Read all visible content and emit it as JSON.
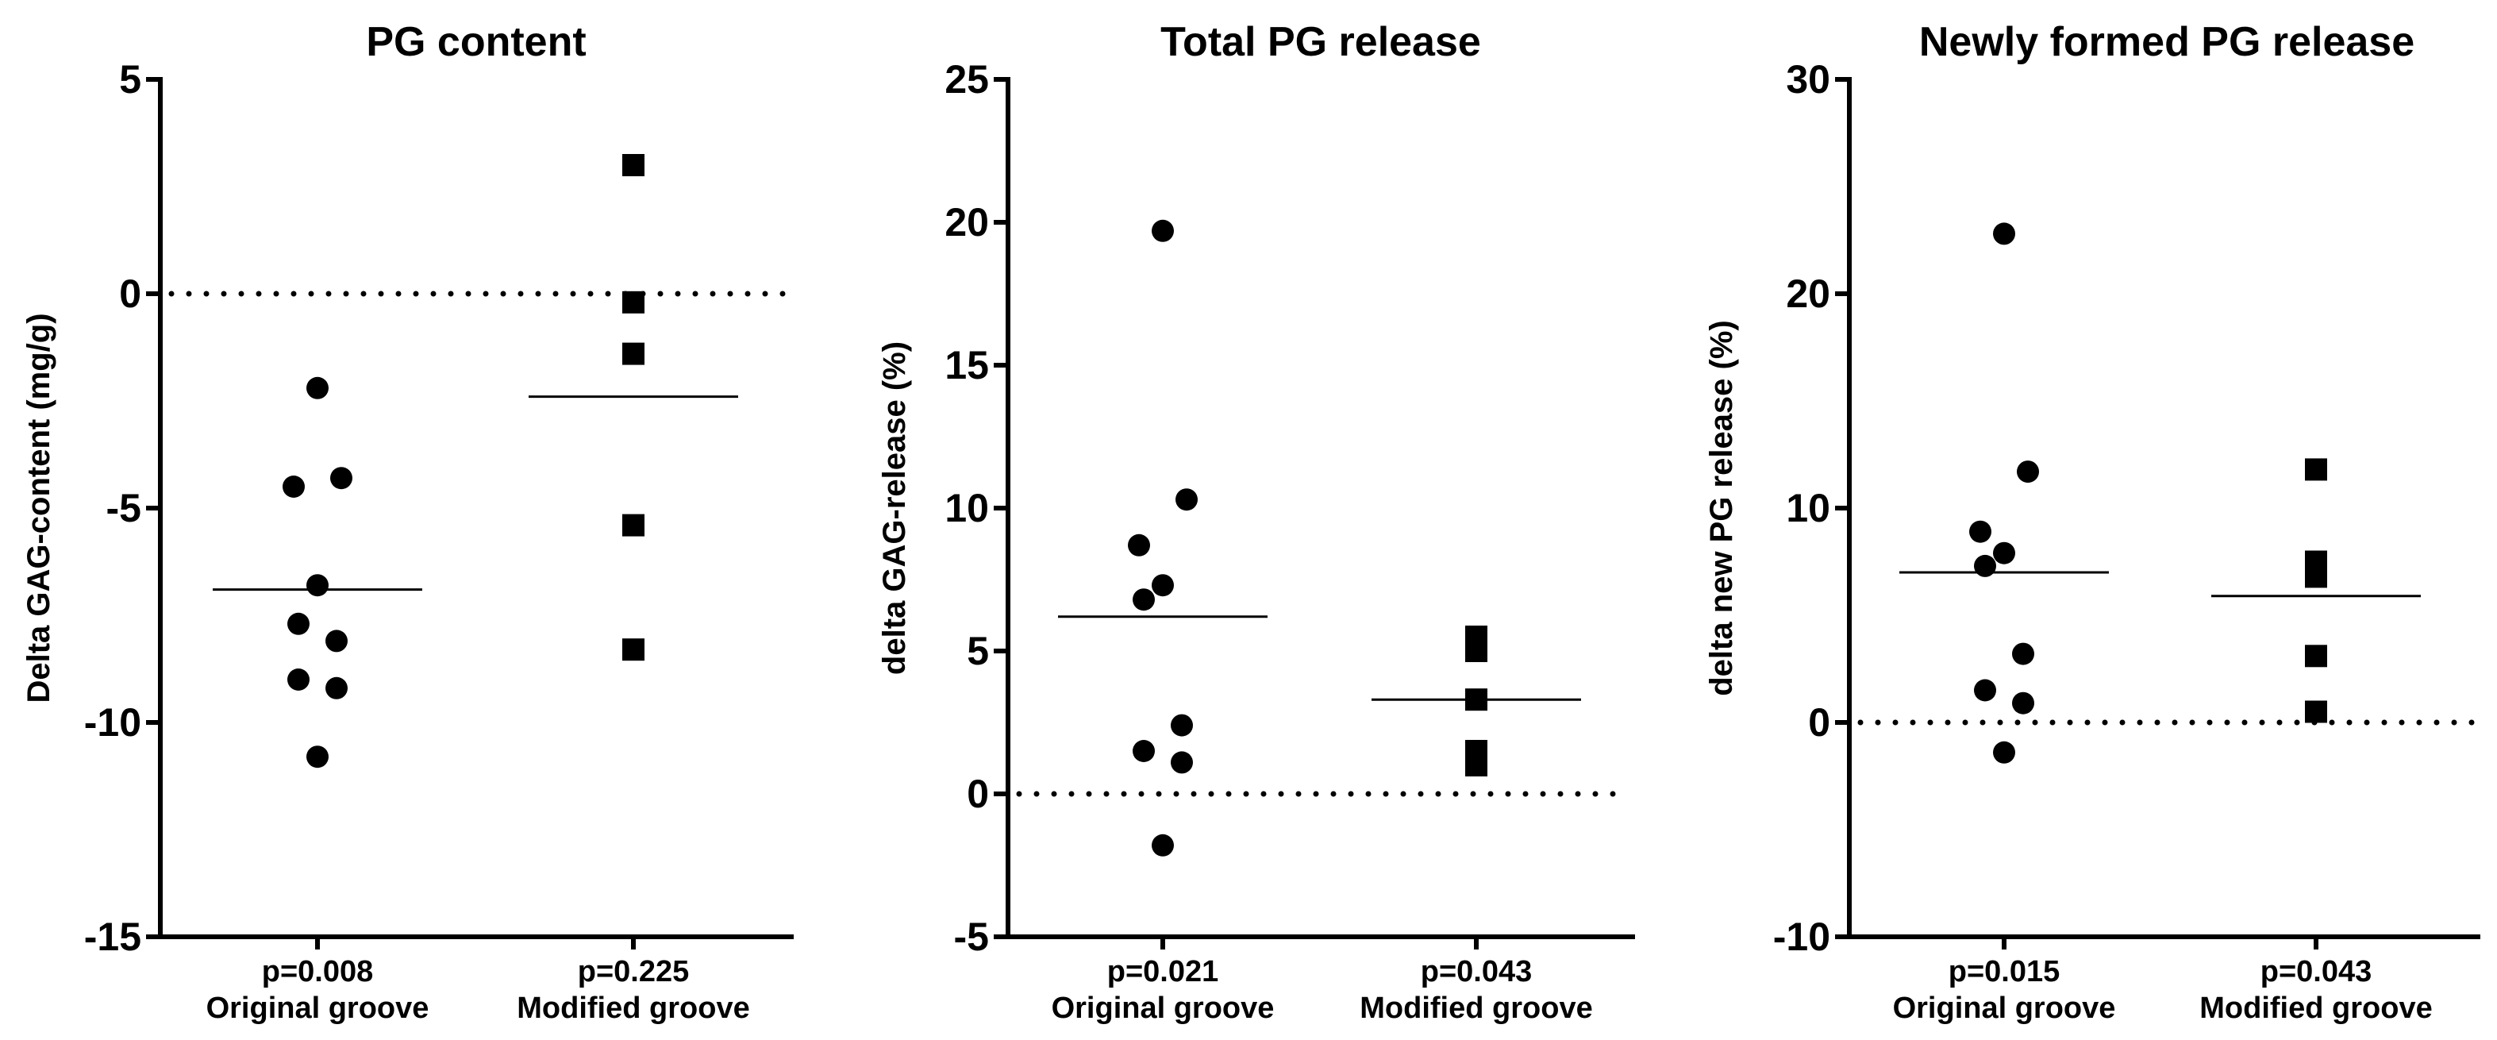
{
  "chart_data": [
    {
      "type": "scatter",
      "title": "PG content",
      "ylabel": "Delta GAG-content (mg/g)",
      "xlabel": "",
      "ylim": [
        -15,
        5
      ],
      "yticks": [
        5,
        0,
        -5,
        -10,
        -15
      ],
      "reference_line": 0,
      "groups": [
        {
          "name": "Original groove",
          "p_value": "p=0.008",
          "marker": "circle",
          "mean": -6.9,
          "values": [
            -2.2,
            -4.3,
            -4.5,
            -6.8,
            -7.7,
            -8.1,
            -9.0,
            -9.2,
            -10.8
          ]
        },
        {
          "name": "Modified groove",
          "p_value": "p=0.225",
          "marker": "square",
          "mean": -2.4,
          "values": [
            3.0,
            -0.2,
            -1.4,
            -5.4,
            -8.3
          ]
        }
      ]
    },
    {
      "type": "scatter",
      "title": "Total PG release",
      "ylabel": "delta GAG-release (%)",
      "xlabel": "",
      "ylim": [
        -5,
        25
      ],
      "yticks": [
        25,
        20,
        15,
        10,
        5,
        0,
        -5
      ],
      "reference_line": 0,
      "groups": [
        {
          "name": "Original groove",
          "p_value": "p=0.021",
          "marker": "circle",
          "mean": 6.2,
          "values": [
            19.7,
            10.3,
            8.7,
            7.3,
            6.8,
            2.4,
            1.5,
            1.1,
            -1.8
          ]
        },
        {
          "name": "Modified groove",
          "p_value": "p=0.043",
          "marker": "square",
          "mean": 3.3,
          "values": [
            5.5,
            5.0,
            3.3,
            1.5,
            1.0
          ]
        }
      ]
    },
    {
      "type": "scatter",
      "title": "Newly formed PG release",
      "ylabel": "delta new PG release  (%)",
      "xlabel": "",
      "ylim": [
        -10,
        30
      ],
      "yticks": [
        30,
        20,
        10,
        0,
        -10
      ],
      "reference_line": 0,
      "groups": [
        {
          "name": "Original groove",
          "p_value": "p=0.015",
          "marker": "circle",
          "mean": 7.0,
          "values": [
            22.8,
            11.7,
            8.9,
            7.9,
            7.3,
            3.2,
            1.5,
            0.9,
            -1.4
          ]
        },
        {
          "name": "Modified groove",
          "p_value": "p=0.043",
          "marker": "square",
          "mean": 5.9,
          "values": [
            11.8,
            7.5,
            6.8,
            3.1,
            0.5
          ]
        }
      ]
    }
  ]
}
